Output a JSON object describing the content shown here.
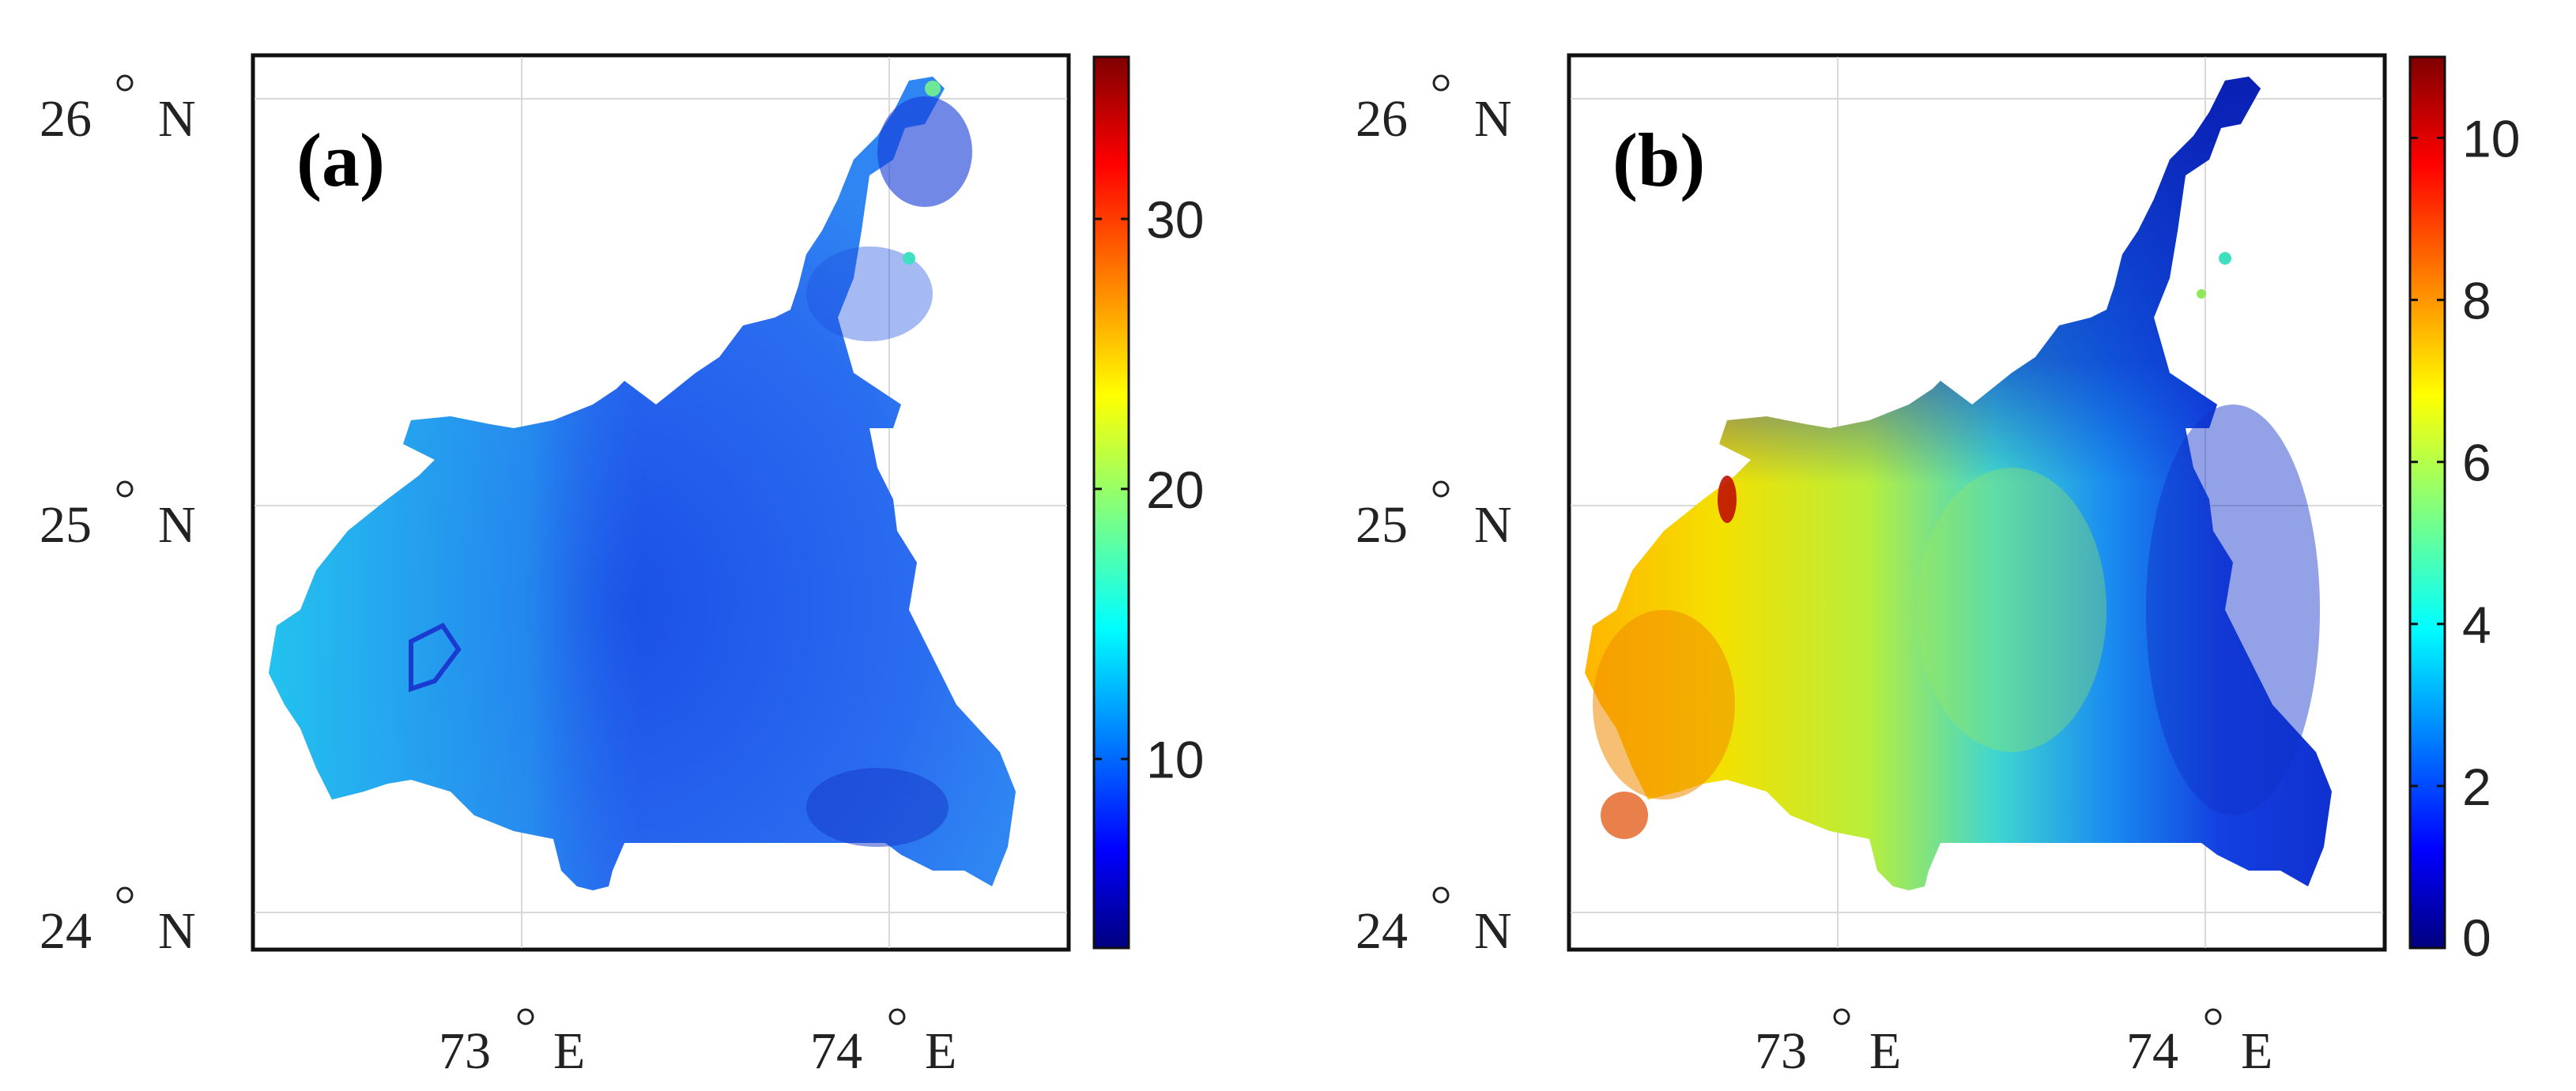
{
  "panels": [
    {
      "id": "a",
      "label": "(a)",
      "lat_ticks": [
        "26",
        "25",
        "24"
      ],
      "lon_ticks": [
        "73",
        "74"
      ],
      "lat_hemisphere": "N",
      "lon_hemisphere": "E",
      "colorbar": {
        "min": 3,
        "max": 36,
        "ticks": [
          "10",
          "20",
          "30"
        ],
        "tick_values": [
          10,
          20,
          30
        ]
      }
    },
    {
      "id": "b",
      "label": "(b)",
      "lat_ticks": [
        "26",
        "25",
        "24"
      ],
      "lon_ticks": [
        "73",
        "74"
      ],
      "lat_hemisphere": "N",
      "lon_hemisphere": "E",
      "colorbar": {
        "min": 0,
        "max": 11,
        "ticks": [
          "0",
          "2",
          "4",
          "6",
          "8",
          "10"
        ],
        "tick_values": [
          0,
          2,
          4,
          6,
          8,
          10
        ]
      }
    }
  ],
  "colormap": "jet",
  "colors": {
    "jet_dark_blue": "#00007f",
    "jet_blue": "#0000ff",
    "jet_cyan": "#00ffff",
    "jet_yellow": "#ffff00",
    "jet_red": "#ff0000",
    "jet_dark_red": "#7f0000"
  }
}
